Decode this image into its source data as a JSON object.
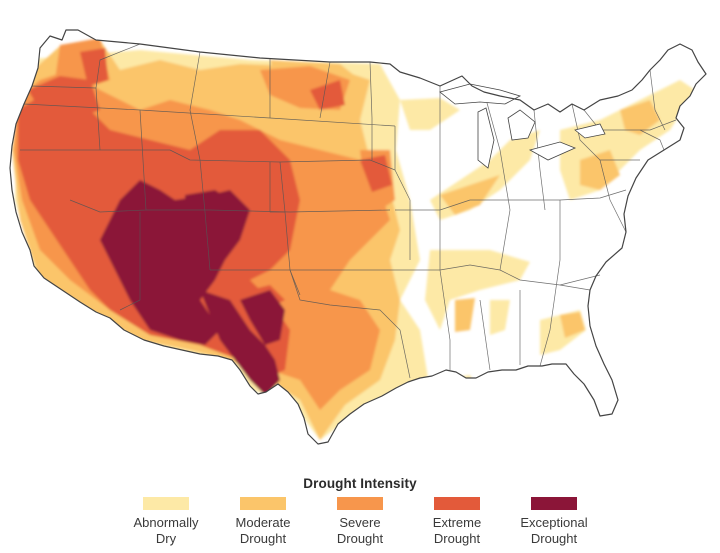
{
  "legend": {
    "title": "Drought Intensity",
    "categories": [
      {
        "line1": "Abnormally",
        "line2": "Dry",
        "color": "#fde9a6"
      },
      {
        "line1": "Moderate",
        "line2": "Drought",
        "color": "#fbc56a"
      },
      {
        "line1": "Severe",
        "line2": "Drought",
        "color": "#f7964c"
      },
      {
        "line1": "Extreme",
        "line2": "Drought",
        "color": "#e35a3a"
      },
      {
        "line1": "Exceptional",
        "line2": "Drought",
        "color": "#8b1538"
      }
    ]
  },
  "map": {
    "background": "#ffffff",
    "border_color": "#444444"
  }
}
